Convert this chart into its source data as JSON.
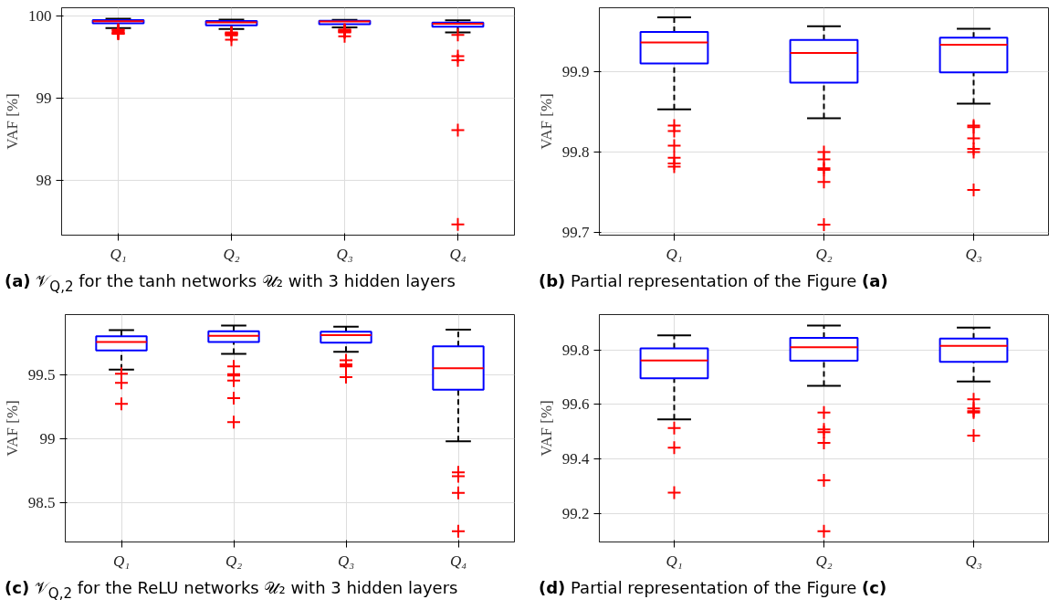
{
  "chart_data": [
    {
      "type": "box",
      "title": "(a) 𝒱$_{Q,2}$ for the tanh networks 𝒰₂ with 3 hidden layers",
      "ylabel": "VAF [%]",
      "categories": [
        "Q₁",
        "Q₂",
        "Q₃",
        "Q₄"
      ],
      "ylim": [
        97.33,
        100.1
      ],
      "yticks": [
        98,
        99,
        100
      ],
      "grid": true,
      "color": "#0000ff",
      "boxes": [
        {
          "low": 99.853,
          "q1": 99.91,
          "median": 99.936,
          "q3": 99.949,
          "high": 99.967,
          "outliers": [
            99.833,
            99.826,
            99.808,
            99.793,
            99.786,
            99.782
          ]
        },
        {
          "low": 99.842,
          "q1": 99.886,
          "median": 99.923,
          "q3": 99.939,
          "high": 99.956,
          "outliers": [
            99.8,
            99.791,
            99.78,
            99.778,
            99.763,
            99.71
          ]
        },
        {
          "low": 99.86,
          "q1": 99.899,
          "median": 99.933,
          "q3": 99.942,
          "high": 99.953,
          "outliers": [
            99.833,
            99.831,
            99.817,
            99.804,
            99.8,
            99.753
          ]
        },
        {
          "low": 99.8,
          "q1": 99.87,
          "median": 99.905,
          "q3": 99.92,
          "high": 99.946,
          "outliers": [
            99.77,
            99.51,
            99.46,
            98.61,
            97.46
          ]
        }
      ]
    },
    {
      "type": "box",
      "title": "(b) Partial representation of the Figure (a)",
      "ylabel": "VAF [%]",
      "categories": [
        "Q₁",
        "Q₂",
        "Q₃"
      ],
      "ylim": [
        99.697,
        99.979
      ],
      "yticks": [
        99.7,
        99.8,
        99.9
      ],
      "grid": true,
      "color": "#0000ff",
      "boxes": [
        {
          "low": 99.853,
          "q1": 99.91,
          "median": 99.936,
          "q3": 99.949,
          "high": 99.967,
          "outliers": [
            99.833,
            99.826,
            99.808,
            99.793,
            99.786,
            99.782
          ]
        },
        {
          "low": 99.842,
          "q1": 99.886,
          "median": 99.923,
          "q3": 99.939,
          "high": 99.956,
          "outliers": [
            99.8,
            99.791,
            99.78,
            99.778,
            99.763,
            99.71
          ]
        },
        {
          "low": 99.86,
          "q1": 99.899,
          "median": 99.933,
          "q3": 99.942,
          "high": 99.953,
          "outliers": [
            99.833,
            99.831,
            99.817,
            99.804,
            99.8,
            99.753
          ]
        }
      ]
    },
    {
      "type": "box",
      "title": "(c) 𝒱$_{Q,2}$ for the ReLU networks 𝒰₂ with 3 hidden layers",
      "ylabel": "VAF [%]",
      "categories": [
        "Q₁",
        "Q₂",
        "Q₃",
        "Q₄"
      ],
      "ylim": [
        98.196,
        99.975
      ],
      "yticks": [
        98.5,
        99,
        99.5
      ],
      "grid": true,
      "color": "#0000ff",
      "boxes": [
        {
          "low": 99.545,
          "q1": 99.695,
          "median": 99.761,
          "q3": 99.805,
          "high": 99.853,
          "outliers": [
            99.513,
            99.441,
            99.276
          ]
        },
        {
          "low": 99.668,
          "q1": 99.76,
          "median": 99.809,
          "q3": 99.844,
          "high": 99.889,
          "outliers": [
            99.57,
            99.508,
            99.498,
            99.458,
            99.321,
            99.134
          ]
        },
        {
          "low": 99.684,
          "q1": 99.756,
          "median": 99.814,
          "q3": 99.841,
          "high": 99.881,
          "outliers": [
            99.618,
            99.585,
            99.575,
            99.57,
            99.485
          ]
        },
        {
          "low": 98.984,
          "q1": 99.388,
          "median": 99.556,
          "q3": 99.727,
          "high": 99.858,
          "outliers": [
            98.74,
            98.71,
            98.58,
            98.28
          ]
        }
      ]
    },
    {
      "type": "box",
      "title": "(d) Partial representation of the Figure (c)",
      "ylabel": "VAF [%]",
      "categories": [
        "Q₁",
        "Q₂",
        "Q₃"
      ],
      "ylim": [
        99.095,
        99.929
      ],
      "yticks": [
        99.2,
        99.4,
        99.6,
        99.8
      ],
      "grid": true,
      "color": "#0000ff",
      "boxes": [
        {
          "low": 99.545,
          "q1": 99.695,
          "median": 99.761,
          "q3": 99.805,
          "high": 99.853,
          "outliers": [
            99.513,
            99.441,
            99.276
          ]
        },
        {
          "low": 99.668,
          "q1": 99.76,
          "median": 99.809,
          "q3": 99.844,
          "high": 99.889,
          "outliers": [
            99.57,
            99.508,
            99.498,
            99.458,
            99.321,
            99.134
          ]
        },
        {
          "low": 99.684,
          "q1": 99.756,
          "median": 99.814,
          "q3": 99.841,
          "high": 99.881,
          "outliers": [
            99.618,
            99.585,
            99.575,
            99.57,
            99.485
          ]
        }
      ]
    }
  ]
}
